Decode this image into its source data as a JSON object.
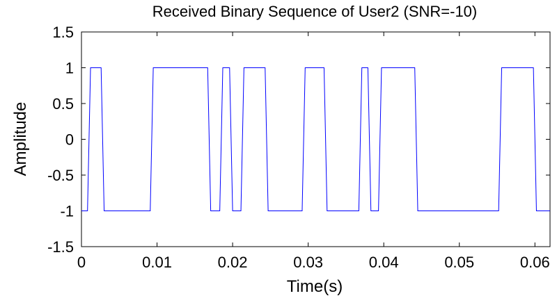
{
  "chart_data": {
    "type": "line",
    "title": "Received Binary Sequence of User2 (SNR=-10)",
    "xlabel": "Time(s)",
    "ylabel": "Amplitude",
    "xlim": [
      0,
      0.062
    ],
    "ylim": [
      -1.5,
      1.5
    ],
    "xticks": [
      0,
      0.01,
      0.02,
      0.03,
      0.04,
      0.05,
      0.06
    ],
    "xtick_labels": [
      "0",
      "0.01",
      "0.02",
      "0.03",
      "0.04",
      "0.05",
      "0.06"
    ],
    "yticks": [
      -1.5,
      -1,
      -0.5,
      0,
      0.5,
      1,
      1.5
    ],
    "ytick_labels": [
      "-1.5",
      "-1",
      "-0.5",
      "0",
      "0.5",
      "1",
      "1.5"
    ],
    "grid": false,
    "line_color": "#0000ff",
    "series": [
      {
        "x": [
          0,
          0.0008,
          0.0012,
          0.0026,
          0.003,
          0.0091,
          0.0095,
          0.0167,
          0.0171,
          0.0183,
          0.0187,
          0.0196,
          0.02,
          0.0211,
          0.0215,
          0.0243,
          0.0247,
          0.0292,
          0.0296,
          0.0321,
          0.0325,
          0.0367,
          0.0371,
          0.0379,
          0.0383,
          0.0393,
          0.0397,
          0.0441,
          0.0445,
          0.0552,
          0.0556,
          0.0598,
          0.0602,
          0.062
        ],
        "y": [
          -1,
          -1,
          1,
          1,
          -1,
          -1,
          1,
          1,
          -1,
          -1,
          1,
          1,
          -1,
          -1,
          1,
          1,
          -1,
          -1,
          1,
          1,
          -1,
          -1,
          1,
          1,
          -1,
          -1,
          1,
          1,
          -1,
          -1,
          1,
          1,
          -1,
          -1
        ]
      }
    ]
  }
}
